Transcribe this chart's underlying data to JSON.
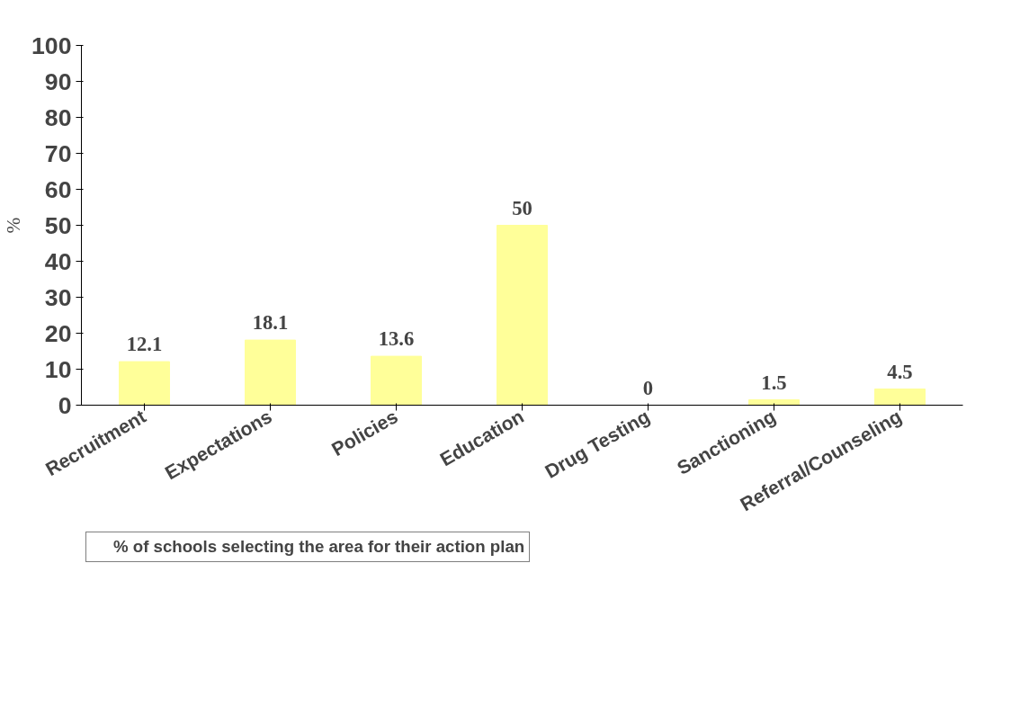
{
  "chart_data": {
    "type": "bar",
    "ylabel": "%",
    "categories": [
      "Recruitment",
      "Expectations",
      "Policies",
      "Education",
      "Drug Testing",
      "Sanctioning",
      "Referral/Counseling"
    ],
    "series": [
      {
        "name": "% of schools selecting the area for their action plan",
        "color": "#ffff99",
        "values": [
          12.1,
          18.1,
          13.6,
          50,
          0,
          1.5,
          4.5
        ]
      }
    ],
    "ylim": [
      0,
      100
    ],
    "yticks": [
      0,
      10,
      20,
      30,
      40,
      50,
      60,
      70,
      80,
      90,
      100
    ],
    "grid": false,
    "data_labels": true,
    "legend": "bottom left"
  }
}
